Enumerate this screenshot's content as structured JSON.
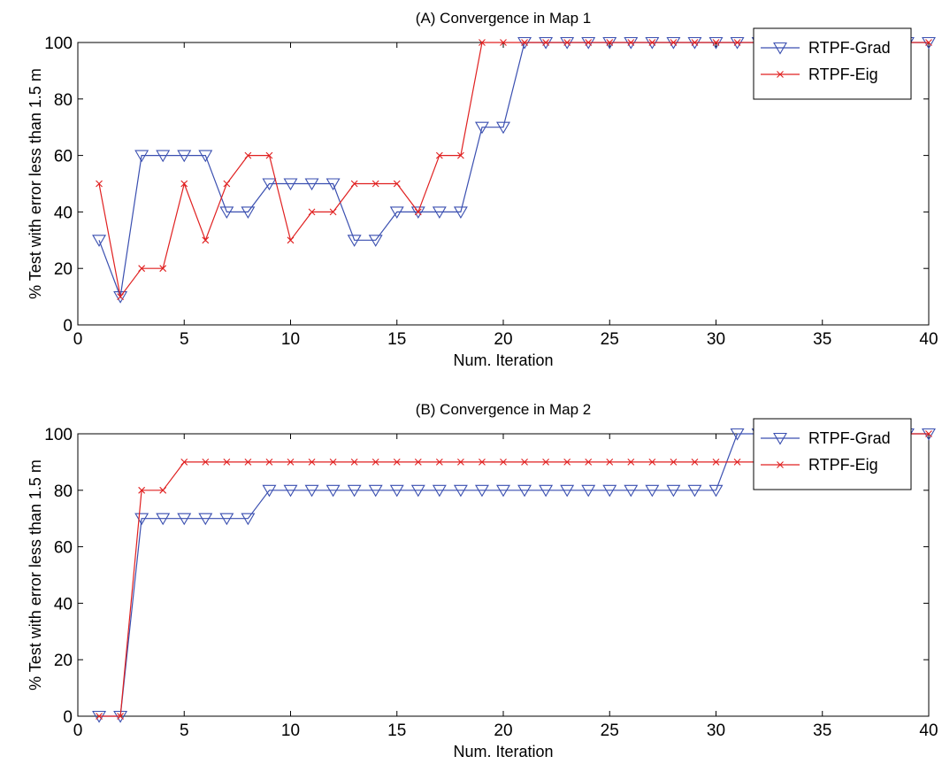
{
  "chart_data": [
    {
      "type": "line",
      "title": "(A) Convergence in Map 1",
      "xlabel": "Num. Iteration",
      "ylabel": "% Test with error less than 1.5 m",
      "xlim": [
        0,
        40
      ],
      "ylim": [
        0,
        100
      ],
      "xticks": [
        0,
        5,
        10,
        15,
        20,
        25,
        30,
        35,
        40
      ],
      "yticks": [
        0,
        20,
        40,
        60,
        80,
        100
      ],
      "grid": false,
      "legend_position": "top-right",
      "x": [
        1,
        2,
        3,
        4,
        5,
        6,
        7,
        8,
        9,
        10,
        11,
        12,
        13,
        14,
        15,
        16,
        17,
        18,
        19,
        20,
        21,
        22,
        23,
        24,
        25,
        26,
        27,
        28,
        29,
        30,
        31,
        32,
        33,
        34,
        35,
        36,
        37,
        38,
        39,
        40
      ],
      "series": [
        {
          "name": "RTPF-Grad",
          "color": "#3a4fb0",
          "marker": "triangle-down",
          "values": [
            30,
            10,
            60,
            60,
            60,
            60,
            40,
            40,
            50,
            50,
            50,
            50,
            30,
            30,
            40,
            40,
            40,
            40,
            70,
            70,
            100,
            100,
            100,
            100,
            100,
            100,
            100,
            100,
            100,
            100,
            100,
            100,
            100,
            100,
            100,
            100,
            100,
            100,
            100,
            100
          ]
        },
        {
          "name": "RTPF-Eig",
          "color": "#e02020",
          "marker": "x",
          "values": [
            50,
            10,
            20,
            20,
            50,
            30,
            50,
            60,
            60,
            30,
            40,
            40,
            50,
            50,
            50,
            40,
            60,
            60,
            100,
            100,
            100,
            100,
            100,
            100,
            100,
            100,
            100,
            100,
            100,
            100,
            100,
            100,
            100,
            100,
            100,
            100,
            100,
            100,
            100,
            100
          ]
        }
      ]
    },
    {
      "type": "line",
      "title": "(B) Convergence in Map 2",
      "xlabel": "Num. Iteration",
      "ylabel": "% Test with error less than 1.5 m",
      "xlim": [
        0,
        40
      ],
      "ylim": [
        0,
        100
      ],
      "xticks": [
        0,
        5,
        10,
        15,
        20,
        25,
        30,
        35,
        40
      ],
      "yticks": [
        0,
        20,
        40,
        60,
        80,
        100
      ],
      "grid": false,
      "legend_position": "top-right",
      "x": [
        1,
        2,
        3,
        4,
        5,
        6,
        7,
        8,
        9,
        10,
        11,
        12,
        13,
        14,
        15,
        16,
        17,
        18,
        19,
        20,
        21,
        22,
        23,
        24,
        25,
        26,
        27,
        28,
        29,
        30,
        31,
        32,
        33,
        34,
        35,
        36,
        37,
        38,
        39,
        40
      ],
      "series": [
        {
          "name": "RTPF-Grad",
          "color": "#3a4fb0",
          "marker": "triangle-down",
          "values": [
            0,
            0,
            70,
            70,
            70,
            70,
            70,
            70,
            80,
            80,
            80,
            80,
            80,
            80,
            80,
            80,
            80,
            80,
            80,
            80,
            80,
            80,
            80,
            80,
            80,
            80,
            80,
            80,
            80,
            80,
            100,
            100,
            100,
            100,
            100,
            100,
            100,
            100,
            100,
            100
          ]
        },
        {
          "name": "RTPF-Eig",
          "color": "#e02020",
          "marker": "x",
          "values": [
            0,
            0,
            80,
            80,
            90,
            90,
            90,
            90,
            90,
            90,
            90,
            90,
            90,
            90,
            90,
            90,
            90,
            90,
            90,
            90,
            90,
            90,
            90,
            90,
            90,
            90,
            90,
            90,
            90,
            90,
            90,
            90,
            100,
            100,
            100,
            100,
            100,
            100,
            100,
            100
          ]
        }
      ]
    }
  ]
}
